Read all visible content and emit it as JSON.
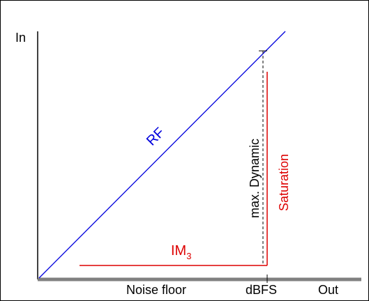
{
  "diagram": {
    "y_axis_label": "In",
    "x_axis_label": "Out",
    "noise_floor_label": "Noise floor",
    "dbfs_label": "dBFS",
    "rf_label": "RF",
    "im3_label": "IM",
    "im3_subscript": "3",
    "dynamic_label": "max. Dynamic",
    "saturation_label": "Saturation"
  },
  "colors": {
    "rf": "#0000dd",
    "im3": "#dd0000",
    "saturation": "#dd0000",
    "axis": "#000000",
    "floor": "#808080",
    "dynamic": "#000000"
  }
}
